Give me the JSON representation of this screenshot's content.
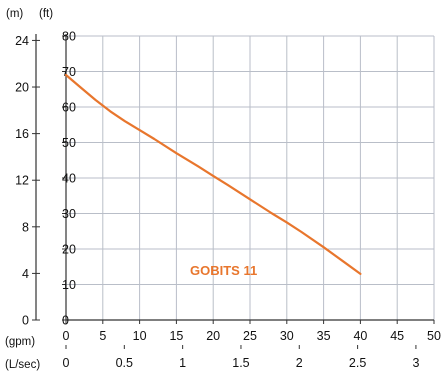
{
  "chart_data": {
    "type": "line",
    "y_units": {
      "left": "(m)",
      "right": "(ft)"
    },
    "x_units": {
      "top": "(gpm)",
      "bottom": "(L/sec)"
    },
    "y_ft_ticks": [
      "0",
      "10",
      "20",
      "30",
      "40",
      "50",
      "60",
      "70",
      "80"
    ],
    "y_m_ticks": [
      "0",
      "4",
      "8",
      "12",
      "16",
      "20",
      "24"
    ],
    "x_gpm_ticks": [
      "0",
      "5",
      "10",
      "15",
      "20",
      "25",
      "30",
      "35",
      "40",
      "45",
      "50"
    ],
    "x_lsec_ticks": [
      "0",
      "0.5",
      "1",
      "1.5",
      "2",
      "2.5",
      "3"
    ],
    "ylim_ft": [
      0,
      80
    ],
    "ylim_m": [
      0,
      24.38
    ],
    "xlim_gpm": [
      0,
      50
    ],
    "xlim_lsec": [
      0,
      3.155
    ],
    "grid": true,
    "series": [
      {
        "name": "GOBITS 11",
        "color": "#e8762d",
        "x": [
          0,
          2,
          4,
          6,
          8,
          10,
          12,
          15,
          18,
          20,
          22,
          25,
          28,
          30,
          32,
          35,
          38,
          40
        ],
        "y": [
          69,
          65.5,
          62,
          58.8,
          56,
          53.5,
          51,
          47,
          43.2,
          40.6,
          38,
          34,
          30,
          27.5,
          24.8,
          20.5,
          16,
          13
        ]
      }
    ]
  }
}
